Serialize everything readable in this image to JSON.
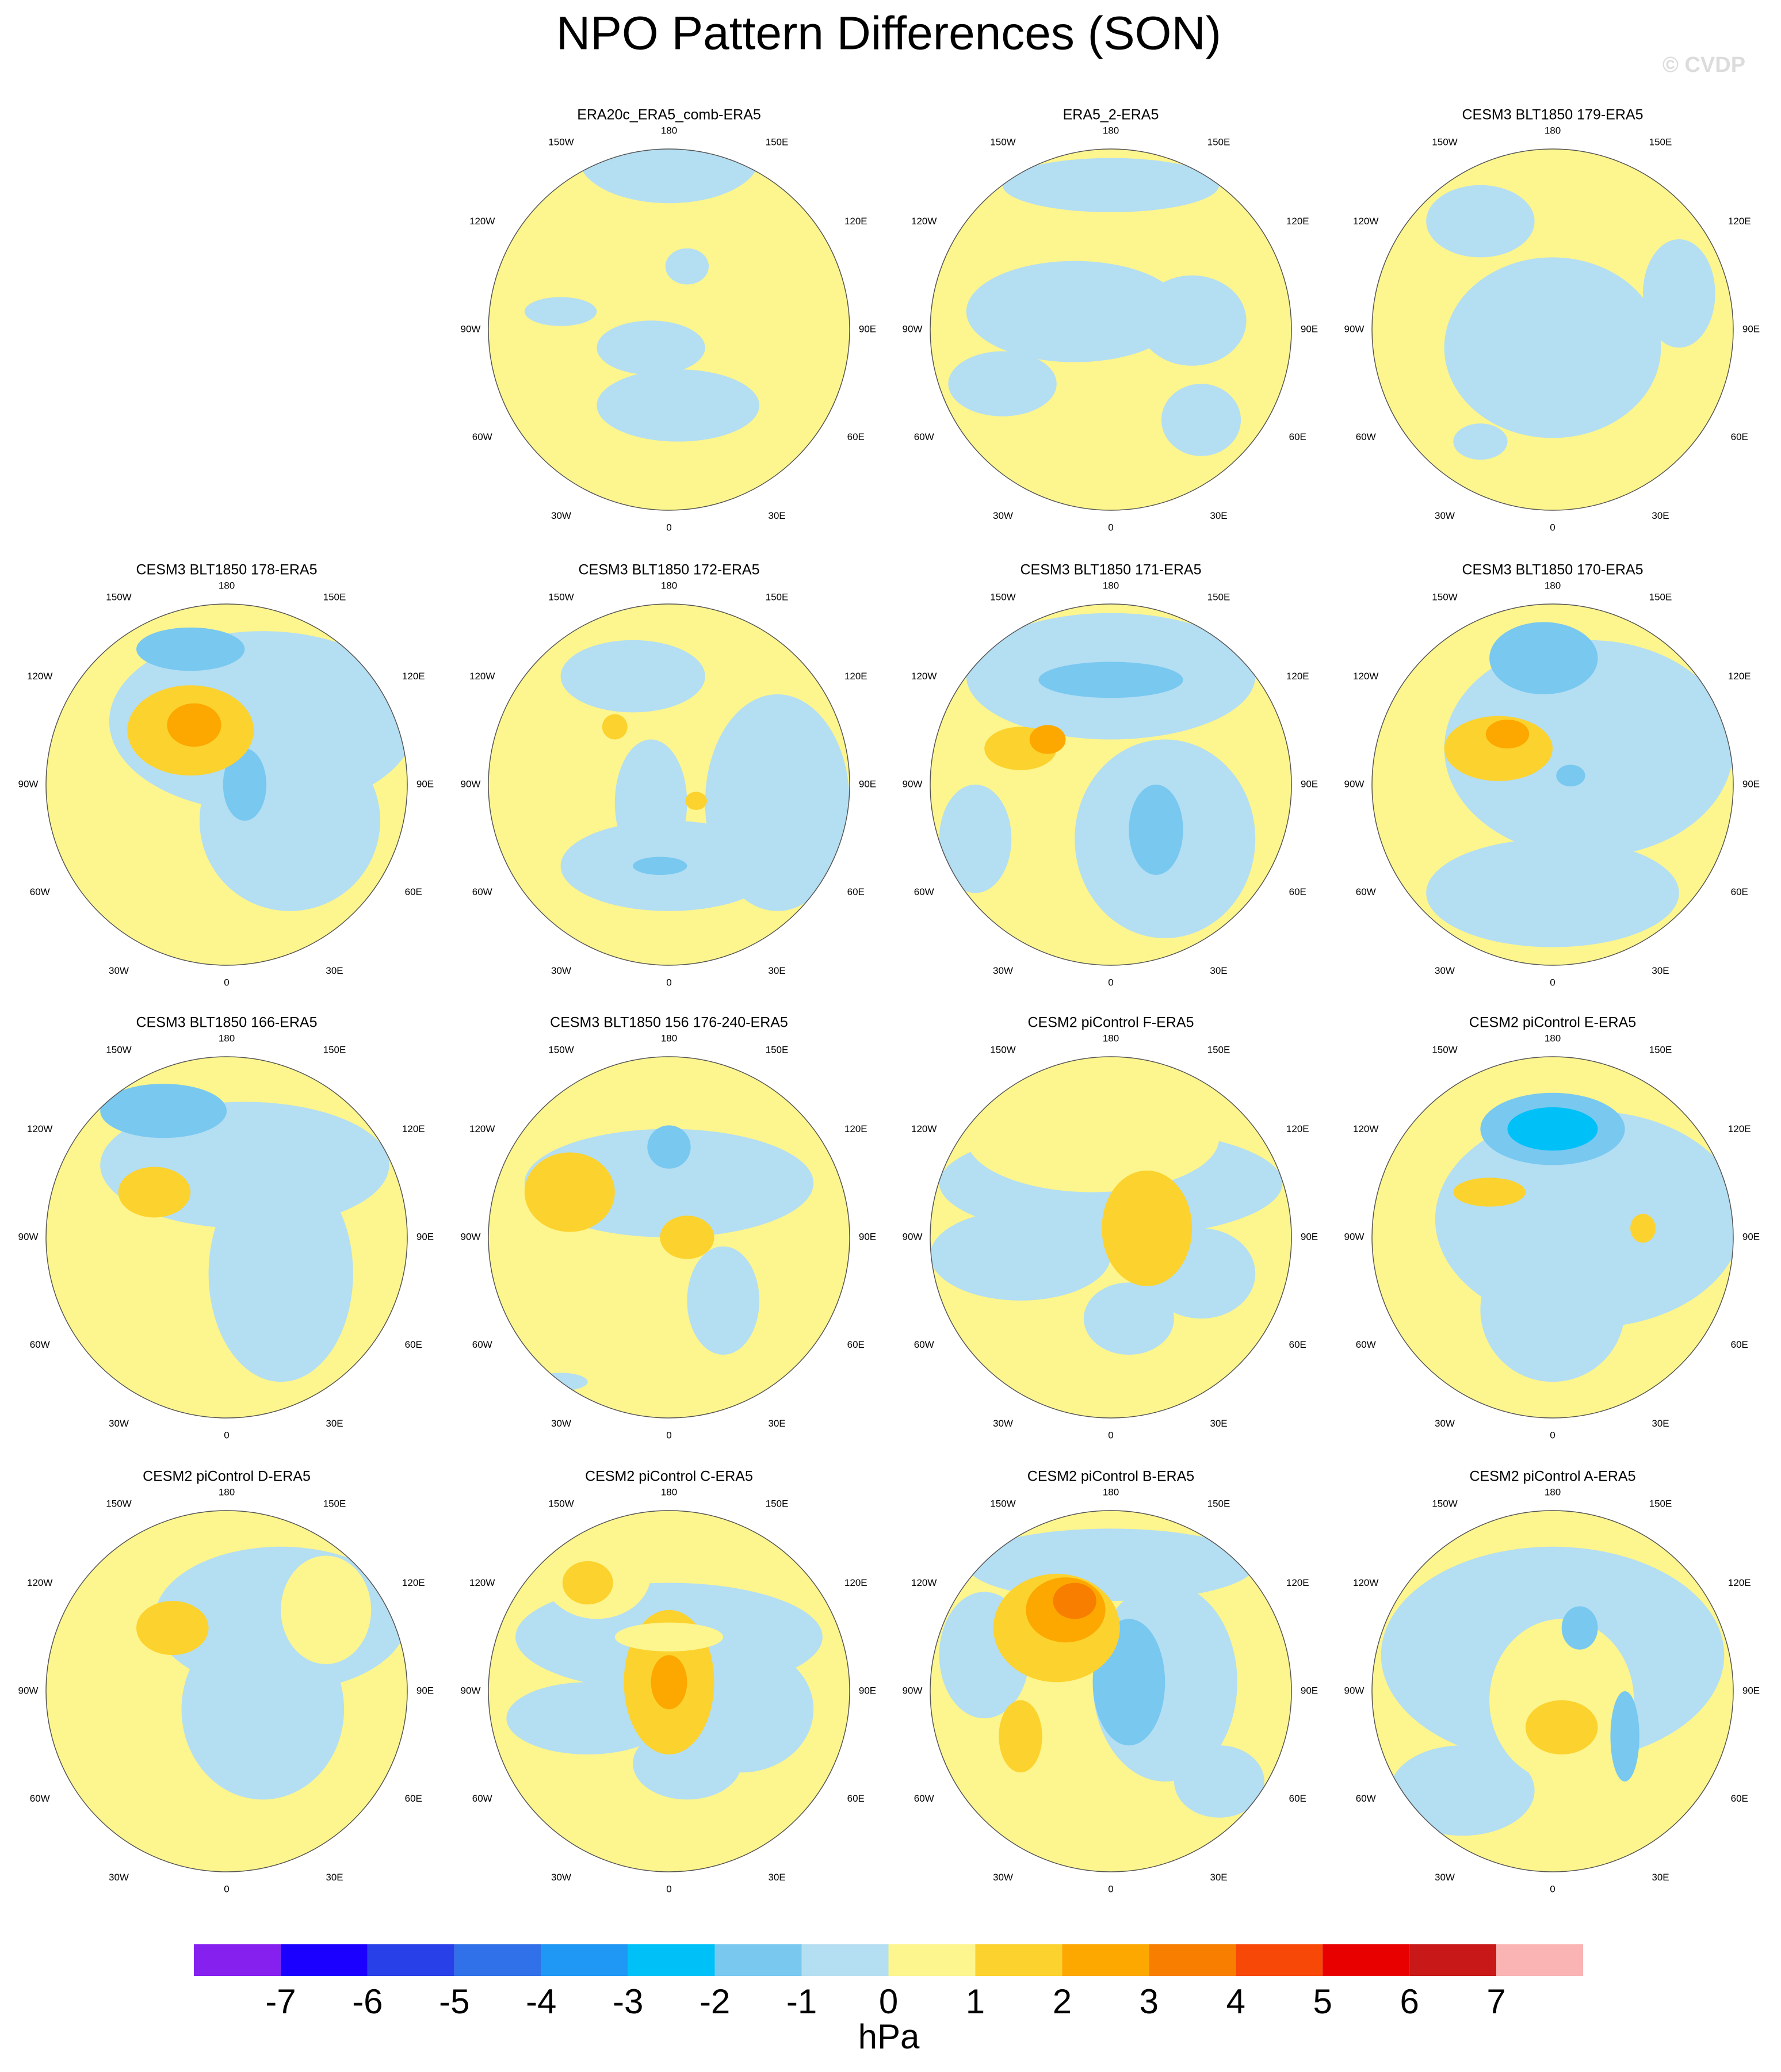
{
  "title": "NPO Pattern Differences (SON)",
  "watermark": "© CVDP",
  "longitude_labels": [
    "180",
    "150E",
    "120E",
    "90E",
    "60E",
    "30E",
    "0",
    "30W",
    "60W",
    "90W",
    "120W",
    "150W"
  ],
  "panels": [
    {
      "title": "ERA20c_ERA5_comb-ERA5"
    },
    {
      "title": "ERA5_2-ERA5"
    },
    {
      "title": "CESM3 BLT1850 179-ERA5"
    },
    {
      "title": "CESM3 BLT1850 178-ERA5"
    },
    {
      "title": "CESM3 BLT1850 172-ERA5"
    },
    {
      "title": "CESM3 BLT1850 171-ERA5"
    },
    {
      "title": "CESM3 BLT1850 170-ERA5"
    },
    {
      "title": "CESM3 BLT1850 166-ERA5"
    },
    {
      "title": "CESM3 BLT1850 156 176-240-ERA5"
    },
    {
      "title": "CESM2 piControl F-ERA5"
    },
    {
      "title": "CESM2 piControl E-ERA5"
    },
    {
      "title": "CESM2 piControl D-ERA5"
    },
    {
      "title": "CESM2 piControl C-ERA5"
    },
    {
      "title": "CESM2 piControl B-ERA5"
    },
    {
      "title": "CESM2 piControl A-ERA5"
    }
  ],
  "colorbar": {
    "levels": [
      -7,
      -6,
      -5,
      -4,
      -3,
      -2,
      -1,
      0,
      1,
      2,
      3,
      4,
      5,
      6,
      7
    ],
    "colors": [
      "#8520ef",
      "#1c00ff",
      "#2840e8",
      "#3070e8",
      "#1f97f5",
      "#00c0f8",
      "#78c8f0",
      "#b4def2",
      "#fdf58e",
      "#fcd22e",
      "#fca800",
      "#f87e00",
      "#f84808",
      "#e80000",
      "#c81818",
      "#fab4b4"
    ],
    "unit": "hPa"
  }
}
